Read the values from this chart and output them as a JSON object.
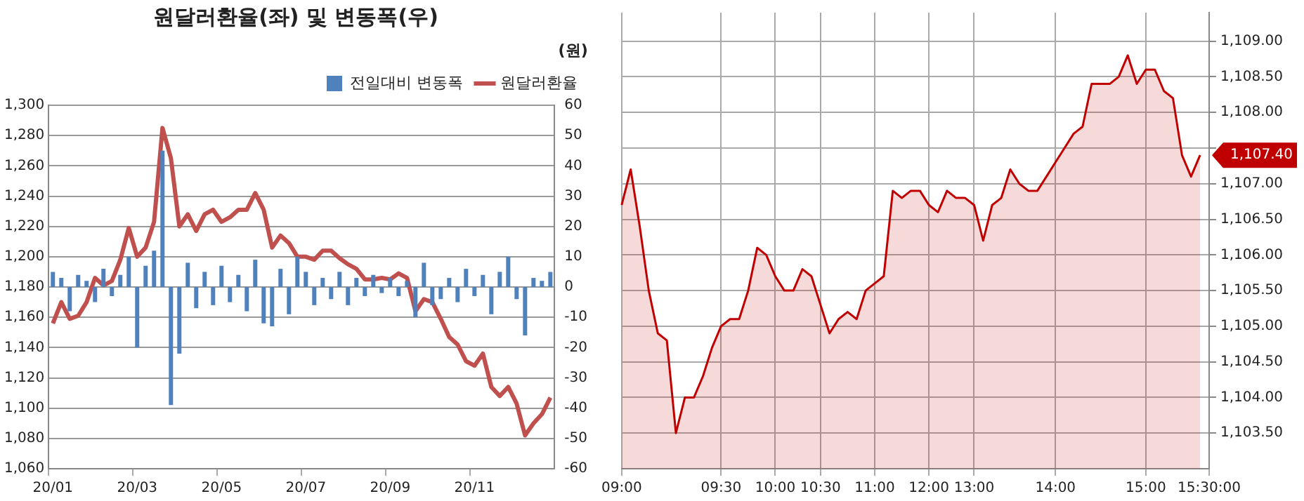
{
  "chart_data": [
    {
      "type": "bar",
      "title": "원달러환율(좌) 및 변동폭(우)",
      "y2label": "(원)",
      "categories": [
        "20/01",
        null,
        null,
        null,
        null,
        null,
        null,
        null,
        null,
        null,
        "20/03",
        null,
        null,
        null,
        null,
        null,
        null,
        null,
        null,
        null,
        "20/05",
        null,
        null,
        null,
        null,
        null,
        null,
        null,
        null,
        null,
        "20/07",
        null,
        null,
        null,
        null,
        null,
        null,
        null,
        null,
        null,
        "20/09",
        null,
        null,
        null,
        null,
        null,
        null,
        null,
        null,
        null,
        "20/11",
        null,
        null,
        null,
        null,
        null,
        null,
        null,
        null,
        null
      ],
      "series": [
        {
          "name": "전일대비 변동폭",
          "type": "bar",
          "axis": "y2",
          "color": "#4f81bd",
          "values": [
            5,
            3,
            -8,
            4,
            2,
            -5,
            6,
            -3,
            4,
            10,
            -20,
            7,
            12,
            45,
            -39,
            -22,
            8,
            -7,
            5,
            -6,
            7,
            -5,
            4,
            -8,
            9,
            -12,
            -13,
            6,
            -9,
            10,
            5,
            -6,
            3,
            -4,
            5,
            -6,
            3,
            -3,
            4,
            -2,
            3,
            -3,
            2,
            -10,
            8,
            -6,
            -4,
            3,
            -5,
            6,
            -3,
            4,
            -9,
            5,
            10,
            -4,
            -16,
            3,
            2,
            5
          ]
        },
        {
          "name": "원달러환율",
          "type": "line",
          "color": "#c0504d",
          "values": [
            1156,
            1170,
            1159,
            1161,
            1170,
            1186,
            1181,
            1184,
            1198,
            1219,
            1200,
            1206,
            1223,
            1285,
            1265,
            1220,
            1228,
            1217,
            1228,
            1231,
            1223,
            1226,
            1231,
            1231,
            1242,
            1231,
            1206,
            1214,
            1209,
            1200,
            1200,
            1198,
            1204,
            1204,
            1199,
            1195,
            1192,
            1185,
            1185,
            1186,
            1185,
            1189,
            1186,
            1164,
            1172,
            1170,
            1159,
            1147,
            1142,
            1131,
            1128,
            1136,
            1114,
            1108,
            1114,
            1103,
            1082,
            1090,
            1096,
            1107
          ]
        }
      ],
      "ylim": [
        1060,
        1300
      ],
      "yticks": [
        {
          "value": 1060,
          "label": "1,060"
        },
        {
          "value": 1080,
          "label": "1,080"
        },
        {
          "value": 1100,
          "label": "1,100"
        },
        {
          "value": 1120,
          "label": "1,120"
        },
        {
          "value": 1140,
          "label": "1,140"
        },
        {
          "value": 1160,
          "label": "1,160"
        },
        {
          "value": 1180,
          "label": "1,180"
        },
        {
          "value": 1200,
          "label": "1,200"
        },
        {
          "value": 1220,
          "label": "1,220"
        },
        {
          "value": 1240,
          "label": "1,240"
        },
        {
          "value": 1260,
          "label": "1,260"
        },
        {
          "value": 1280,
          "label": "1,280"
        },
        {
          "value": 1300,
          "label": "1,300"
        }
      ],
      "y2lim": [
        -60,
        60
      ],
      "y2ticks": [
        -60,
        -50,
        -40,
        -30,
        -20,
        -10,
        0,
        10,
        20,
        30,
        40,
        50,
        60
      ],
      "grid": "y",
      "legend": "top right",
      "marker": "none"
    },
    {
      "type": "area",
      "color": "#c00000",
      "categories": [
        "09:00",
        null,
        null,
        null,
        null,
        null,
        null,
        null,
        null,
        null,
        null,
        "09:30",
        null,
        null,
        null,
        null,
        null,
        "10:00",
        null,
        null,
        null,
        null,
        "10:30",
        null,
        null,
        null,
        null,
        null,
        "11:00",
        null,
        null,
        null,
        null,
        null,
        "12:00",
        null,
        null,
        null,
        null,
        "13:00",
        null,
        null,
        null,
        null,
        null,
        null,
        null,
        null,
        "14:00",
        null,
        null,
        null,
        null,
        null,
        null,
        null,
        null,
        null,
        "15:00",
        null,
        null,
        null,
        null,
        null,
        null,
        "15:30:00"
      ],
      "values": [
        1106.7,
        1107.2,
        1106.4,
        1105.5,
        1104.9,
        1104.8,
        1103.5,
        1104.0,
        1104.0,
        1104.3,
        1104.7,
        1105.0,
        1105.1,
        1105.1,
        1105.5,
        1106.1,
        1106.0,
        1105.7,
        1105.5,
        1105.5,
        1105.8,
        1105.7,
        1105.3,
        1104.9,
        1105.1,
        1105.2,
        1105.1,
        1105.5,
        1105.6,
        1105.7,
        1106.9,
        1106.8,
        1106.9,
        1106.9,
        1106.7,
        1106.6,
        1106.9,
        1106.8,
        1106.8,
        1106.7,
        1106.2,
        1106.7,
        1106.8,
        1107.2,
        1107.0,
        1106.9,
        1106.9,
        1107.1,
        1107.3,
        1107.5,
        1107.7,
        1107.8,
        1108.4,
        1108.4,
        1108.4,
        1108.5,
        1108.8,
        1108.4,
        1108.6,
        1108.6,
        1108.3,
        1108.2,
        1107.4,
        1107.1,
        1107.4,
        null
      ],
      "ylim": [
        1103,
        1109.4
      ],
      "yticks": [
        {
          "value": 1103.5,
          "label": "1,103.50"
        },
        {
          "value": 1104,
          "label": "1,104.00"
        },
        {
          "value": 1104.5,
          "label": "1,104.50"
        },
        {
          "value": 1105,
          "label": "1,105.00"
        },
        {
          "value": 1105.5,
          "label": "1,105.50"
        },
        {
          "value": 1106,
          "label": "1,106.00"
        },
        {
          "value": 1106.5,
          "label": "1,106.50"
        },
        {
          "value": 1107,
          "label": "1,107.00"
        },
        {
          "value": 1107.5,
          "label": null
        },
        {
          "value": 1108,
          "label": "1,108.00"
        },
        {
          "value": 1108.5,
          "label": "1,108.50"
        },
        {
          "value": 1109,
          "label": "1,109.00"
        }
      ],
      "annotations": [
        "1,107.40"
      ],
      "grid": true,
      "marker": "none"
    }
  ]
}
